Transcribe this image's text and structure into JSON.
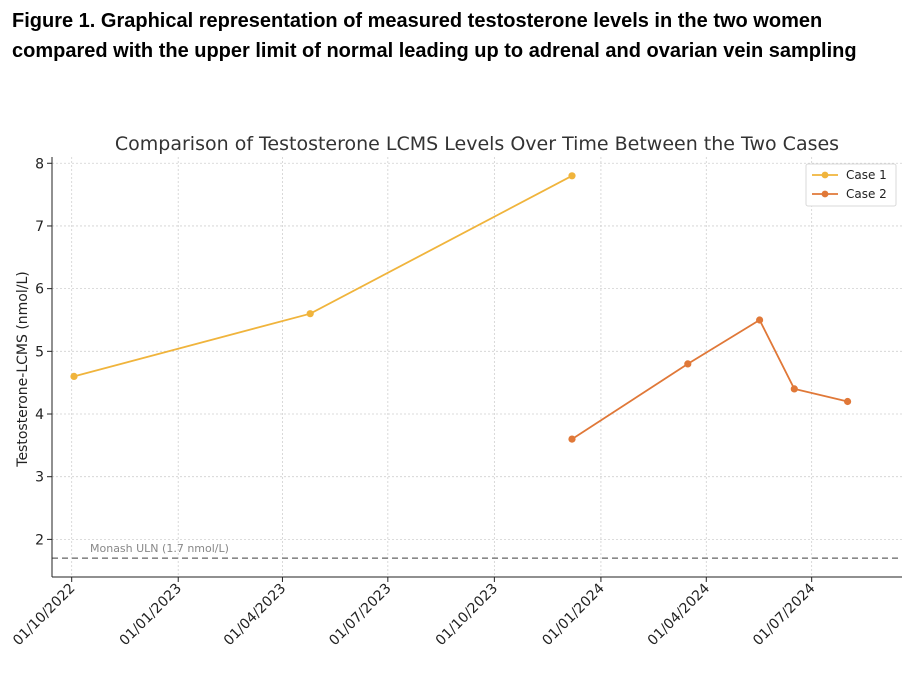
{
  "figure": {
    "caption": "Figure 1. Graphical representation of measured testosterone levels in the two women compared with the upper limit of normal leading up to adrenal and ovarian vein sampling"
  },
  "chart_data": {
    "type": "line",
    "title": "Comparison of Testosterone LCMS Levels Over Time Between the Two Cases",
    "xlabel": "",
    "ylabel": "Testosterone-LCMS (nmol/L)",
    "x_is_date": true,
    "xlim": [
      "2022-09-14",
      "2024-09-17"
    ],
    "ylim": [
      1.4,
      8.1
    ],
    "yticks": [
      2,
      3,
      4,
      5,
      6,
      7,
      8
    ],
    "xticks": [
      {
        "date": "2022-10-01",
        "label": "01/10/2022"
      },
      {
        "date": "2023-01-01",
        "label": "01/01/2023"
      },
      {
        "date": "2023-04-01",
        "label": "01/04/2023"
      },
      {
        "date": "2023-07-01",
        "label": "01/07/2023"
      },
      {
        "date": "2023-10-01",
        "label": "01/10/2023"
      },
      {
        "date": "2024-01-01",
        "label": "01/01/2024"
      },
      {
        "date": "2024-04-01",
        "label": "01/04/2024"
      },
      {
        "date": "2024-07-01",
        "label": "01/07/2024"
      }
    ],
    "grid": true,
    "legend_position": "top-right",
    "series": [
      {
        "name": "Case 1",
        "color": "#f0b43c",
        "points": [
          {
            "x": "2022-10-03",
            "y": 4.6
          },
          {
            "x": "2023-04-25",
            "y": 5.6
          },
          {
            "x": "2023-12-07",
            "y": 7.8
          }
        ]
      },
      {
        "name": "Case 2",
        "color": "#e07838",
        "points": [
          {
            "x": "2023-12-07",
            "y": 3.6
          },
          {
            "x": "2024-03-16",
            "y": 4.8
          },
          {
            "x": "2024-05-17",
            "y": 5.5
          },
          {
            "x": "2024-06-16",
            "y": 4.4
          },
          {
            "x": "2024-08-01",
            "y": 4.2
          }
        ]
      }
    ],
    "reference_line": {
      "y": 1.7,
      "label": "Monash ULN (1.7 nmol/L)",
      "color": "#888888",
      "style": "dashed"
    }
  }
}
